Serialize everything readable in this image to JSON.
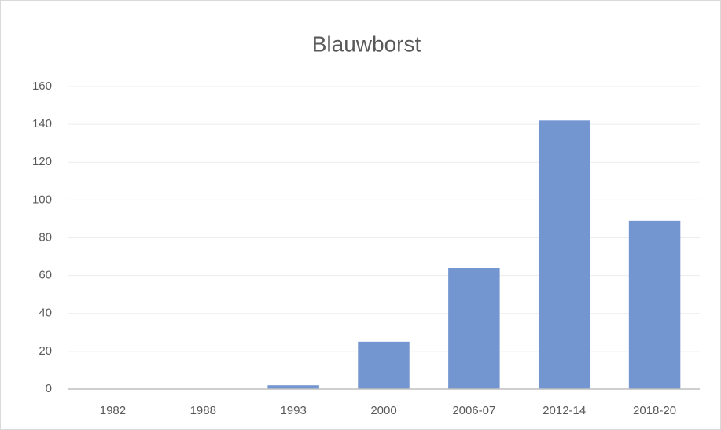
{
  "chart_data": {
    "type": "bar",
    "title": "Blauwborst",
    "categories": [
      "1982",
      "1988",
      "1993",
      "2000",
      "2006-07",
      "2012-14",
      "2018-20"
    ],
    "values": [
      0,
      0,
      2,
      25,
      64,
      142,
      89
    ],
    "color": "#7396d1",
    "ylim": [
      0,
      160
    ],
    "yticks": [
      0,
      20,
      40,
      60,
      80,
      100,
      120,
      140,
      160
    ],
    "grid": true
  }
}
